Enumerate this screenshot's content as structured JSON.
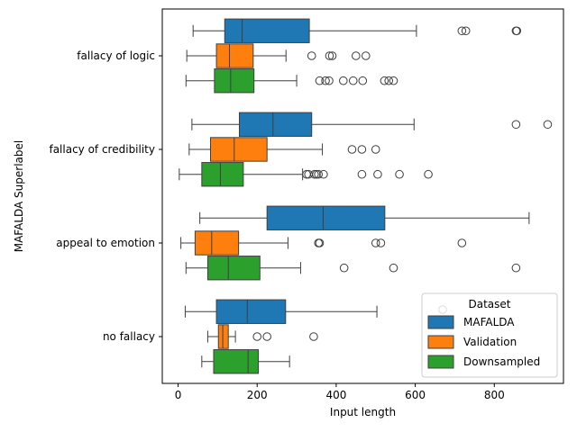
{
  "chart_data": {
    "type": "boxplot",
    "orientation": "horizontal",
    "xlabel": "Input length",
    "ylabel": "MAFALDA Superlabel",
    "xlim": [
      -40,
      975
    ],
    "xticks": [
      0,
      200,
      400,
      600,
      800
    ],
    "grid": false,
    "legend": {
      "title": "Dataset",
      "placement": "lower-right"
    },
    "categories": [
      "fallacy of logic",
      "fallacy of credibility",
      "appeal to emotion",
      "no fallacy"
    ],
    "series": [
      {
        "name": "MAFALDA",
        "color": "#1f77b4",
        "boxes": [
          {
            "whislo": 38,
            "q1": 118,
            "med": 162,
            "q3": 332,
            "whishi": 603,
            "fliers": [
              718,
              728,
              855,
              857
            ]
          },
          {
            "whislo": 35,
            "q1": 155,
            "med": 240,
            "q3": 338,
            "whishi": 597,
            "fliers": [
              855,
              935
            ]
          },
          {
            "whislo": 55,
            "q1": 225,
            "med": 367,
            "q3": 523,
            "whishi": 888,
            "fliers": []
          },
          {
            "whislo": 18,
            "q1": 97,
            "med": 175,
            "q3": 272,
            "whishi": 503,
            "fliers": []
          }
        ]
      },
      {
        "name": "Validation",
        "color": "#ff7f0e",
        "boxes": [
          {
            "whislo": 22,
            "q1": 97,
            "med": 130,
            "q3": 190,
            "whishi": 273,
            "fliers": [
              338,
              383,
              390,
              450,
              475
            ]
          },
          {
            "whislo": 28,
            "q1": 82,
            "med": 142,
            "q3": 225,
            "whishi": 365,
            "fliers": [
              440,
              465,
              500
            ]
          },
          {
            "whislo": 7,
            "q1": 43,
            "med": 85,
            "q3": 153,
            "whishi": 278,
            "fliers": [
              355,
              358,
              500,
              513,
              718
            ]
          },
          {
            "whislo": 75,
            "q1": 102,
            "med": 113,
            "q3": 127,
            "whishi": 145,
            "fliers": [
              200,
              225,
              343
            ]
          }
        ]
      },
      {
        "name": "Downsampled",
        "color": "#2ca02c",
        "boxes": [
          {
            "whislo": 20,
            "q1": 92,
            "med": 133,
            "q3": 192,
            "whishi": 300,
            "fliers": [
              358,
              373,
              382,
              418,
              443,
              467,
              522,
              533,
              545
            ]
          },
          {
            "whislo": 3,
            "q1": 60,
            "med": 107,
            "q3": 165,
            "whishi": 315,
            "fliers": [
              325,
              330,
              345,
              350,
              355,
              368,
              465,
              505,
              560,
              633
            ]
          },
          {
            "whislo": 20,
            "q1": 75,
            "med": 127,
            "q3": 207,
            "whishi": 310,
            "fliers": [
              420,
              545,
              855
            ]
          },
          {
            "whislo": 60,
            "q1": 90,
            "med": 177,
            "q3": 203,
            "whishi": 282,
            "fliers": []
          }
        ]
      }
    ]
  }
}
